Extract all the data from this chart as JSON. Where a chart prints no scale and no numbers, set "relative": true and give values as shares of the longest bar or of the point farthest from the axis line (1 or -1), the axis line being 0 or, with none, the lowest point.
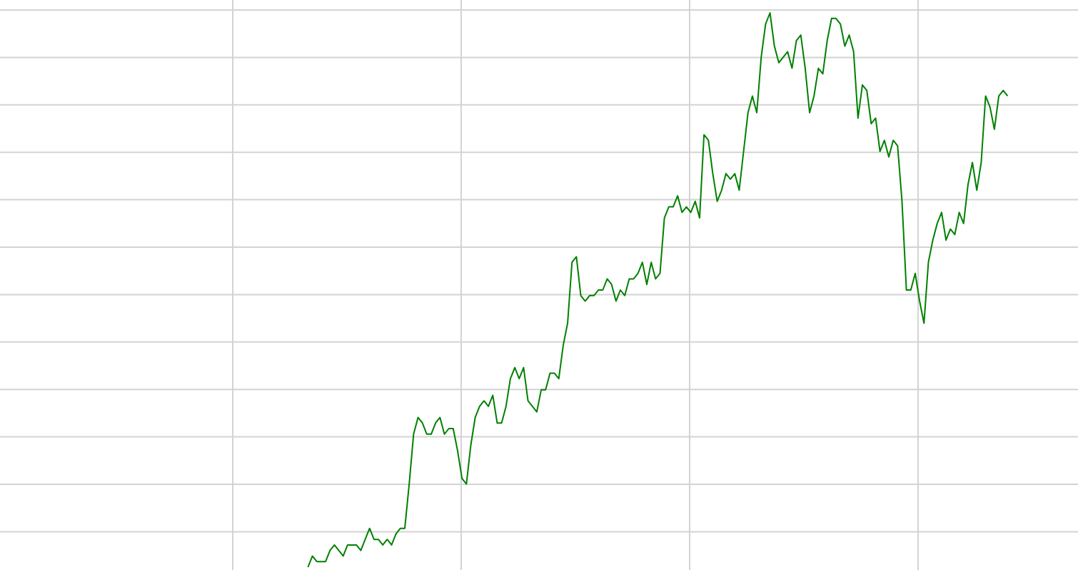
{
  "chart_data": {
    "type": "line",
    "relative": true,
    "grid": true,
    "categories": [
      null,
      null,
      null,
      null,
      null,
      null,
      null,
      null,
      null,
      null,
      null,
      null,
      null,
      null,
      null,
      null,
      null,
      null,
      null,
      null,
      null,
      null,
      null,
      null,
      null,
      null,
      null,
      null,
      null,
      null,
      null,
      null,
      null,
      null,
      null,
      null,
      null,
      null,
      null,
      null,
      null,
      null,
      null,
      null,
      null,
      null,
      null,
      null,
      null,
      null,
      null,
      null,
      null,
      null,
      null,
      null,
      null,
      null,
      null,
      null,
      null,
      null,
      null,
      null,
      null,
      null,
      null,
      null,
      null,
      null,
      null,
      null,
      null,
      null,
      null,
      null,
      null,
      null,
      null,
      null,
      null,
      null,
      null,
      null,
      null,
      null,
      null,
      null,
      null,
      null,
      null,
      null,
      null,
      null,
      null,
      null,
      null,
      null,
      null,
      null,
      null,
      null,
      null,
      null,
      null,
      null,
      null,
      null,
      null,
      null,
      null,
      null,
      null,
      null,
      null,
      null,
      null,
      null,
      null,
      null,
      null,
      null,
      null,
      null,
      null,
      null,
      null,
      null,
      null,
      null,
      null,
      null,
      null,
      null,
      null,
      null,
      null,
      null,
      null,
      null,
      null,
      null,
      null,
      null,
      null,
      null,
      null,
      null,
      null,
      null,
      null,
      null,
      null,
      null,
      null,
      null,
      null,
      null,
      null,
      null,
      null,
      null,
      null,
      null,
      null,
      null,
      null,
      null,
      null,
      null,
      null,
      null,
      null,
      null,
      null,
      null,
      null,
      null,
      null,
      null,
      null,
      null,
      null,
      null,
      null,
      null,
      null,
      null,
      null,
      null,
      null,
      null,
      null,
      null,
      null,
      null,
      null,
      null,
      null,
      null,
      null,
      null,
      null,
      null,
      null,
      null,
      null,
      null,
      null,
      null,
      null,
      null,
      null,
      null,
      null,
      null,
      null,
      null,
      null,
      null,
      null,
      null,
      null,
      null,
      null,
      null,
      null,
      null,
      null,
      null,
      null,
      null,
      null,
      null,
      null,
      null,
      null,
      null,
      null,
      null,
      null,
      null,
      null,
      null,
      null,
      null
    ],
    "series": [
      {
        "color": "#008000",
        "values": [
          null,
          null,
          null,
          null,
          null,
          null,
          null,
          null,
          null,
          null,
          null,
          null,
          null,
          null,
          null,
          null,
          null,
          null,
          null,
          null,
          null,
          null,
          null,
          null,
          null,
          null,
          null,
          null,
          null,
          null,
          null,
          null,
          null,
          null,
          null,
          null,
          null,
          null,
          null,
          null,
          null,
          null,
          null,
          null,
          null,
          null,
          null,
          null,
          null,
          null,
          null,
          null,
          null,
          null,
          null,
          null,
          null,
          null,
          null,
          null,
          null,
          null,
          null,
          null,
          null,
          null,
          null,
          null,
          null,
          null,
          0.0,
          0.02,
          0.01,
          0.01,
          0.01,
          0.03,
          0.04,
          0.03,
          0.02,
          0.04,
          0.04,
          0.04,
          0.03,
          0.05,
          0.07,
          0.05,
          0.05,
          0.04,
          0.05,
          0.04,
          0.06,
          0.07,
          0.07,
          0.15,
          0.24,
          0.27,
          0.26,
          0.24,
          0.24,
          0.26,
          0.27,
          0.24,
          0.25,
          0.25,
          0.21,
          0.16,
          0.15,
          0.22,
          0.27,
          0.29,
          0.3,
          0.29,
          0.31,
          0.26,
          0.26,
          0.29,
          0.34,
          0.36,
          0.34,
          0.36,
          0.3,
          0.29,
          0.28,
          0.32,
          0.32,
          0.35,
          0.35,
          0.34,
          0.4,
          0.44,
          0.55,
          0.56,
          0.49,
          0.48,
          0.49,
          0.49,
          0.5,
          0.5,
          0.52,
          0.51,
          0.48,
          0.5,
          0.49,
          0.52,
          0.52,
          0.53,
          0.55,
          0.51,
          0.55,
          0.52,
          0.53,
          0.63,
          0.65,
          0.65,
          0.67,
          0.64,
          0.65,
          0.64,
          0.66,
          0.63,
          0.78,
          0.77,
          0.71,
          0.66,
          0.68,
          0.71,
          0.7,
          0.71,
          0.68,
          0.75,
          0.82,
          0.85,
          0.82,
          0.92,
          0.98,
          1,
          0.94,
          0.91,
          0.92,
          0.93,
          0.9,
          0.95,
          0.96,
          0.9,
          0.82,
          0.85,
          0.9,
          0.89,
          0.95,
          0.99,
          0.99,
          0.98,
          0.94,
          0.96,
          0.93,
          0.81,
          0.87,
          0.86,
          0.8,
          0.81,
          0.75,
          0.77,
          0.74,
          0.77,
          0.76,
          0.66,
          0.5,
          0.5,
          0.53,
          0.48,
          0.44,
          0.55,
          0.59,
          0.62,
          0.64,
          0.59,
          0.61,
          0.6,
          0.64,
          0.62,
          0.69,
          0.73,
          0.68,
          0.73,
          0.85,
          0.83,
          0.79,
          0.85,
          0.86,
          0.85,
          null,
          null,
          null,
          null,
          null,
          null,
          null,
          null,
          null,
          null,
          null,
          null,
          null,
          null,
          null,
          null
        ]
      }
    ]
  }
}
